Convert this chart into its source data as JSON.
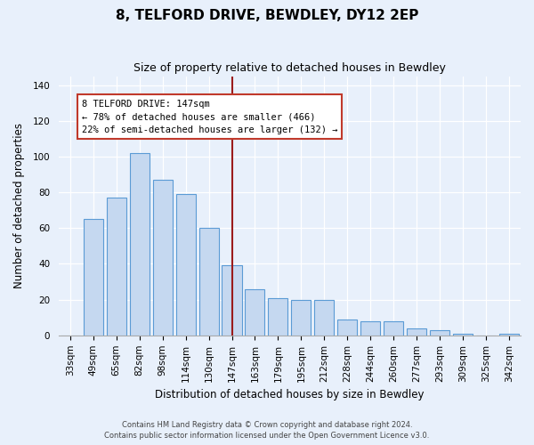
{
  "title": "8, TELFORD DRIVE, BEWDLEY, DY12 2EP",
  "subtitle": "Size of property relative to detached houses in Bewdley",
  "xlabel": "Distribution of detached houses by size in Bewdley",
  "ylabel": "Number of detached properties",
  "bar_labels": [
    "33sqm",
    "49sqm",
    "65sqm",
    "82sqm",
    "98sqm",
    "114sqm",
    "130sqm",
    "147sqm",
    "163sqm",
    "179sqm",
    "195sqm",
    "212sqm",
    "228sqm",
    "244sqm",
    "260sqm",
    "277sqm",
    "293sqm",
    "309sqm",
    "325sqm",
    "342sqm"
  ],
  "bar_values": [
    0,
    65,
    77,
    102,
    87,
    79,
    60,
    39,
    26,
    21,
    20,
    20,
    9,
    8,
    8,
    4,
    3,
    1,
    0,
    1
  ],
  "bar_color": "#c5d8f0",
  "bar_edge_color": "#5b9bd5",
  "vline_x_label": "147sqm",
  "vline_x_idx": 7,
  "vline_color": "#9b1c1c",
  "annotation_title": "8 TELFORD DRIVE: 147sqm",
  "annotation_line1": "← 78% of detached houses are smaller (466)",
  "annotation_line2": "22% of semi-detached houses are larger (132) →",
  "annotation_box_color": "#c0392b",
  "ylim": [
    0,
    145
  ],
  "yticks": [
    0,
    20,
    40,
    60,
    80,
    100,
    120,
    140
  ],
  "footer1": "Contains HM Land Registry data © Crown copyright and database right 2024.",
  "footer2": "Contains public sector information licensed under the Open Government Licence v3.0.",
  "bg_color": "#e8f0fb",
  "plot_bg_color": "#e8f0fb",
  "grid_color": "#ffffff",
  "title_fontsize": 11,
  "subtitle_fontsize": 9,
  "tick_fontsize": 7.5,
  "label_fontsize": 8.5,
  "ann_fontsize": 7.5
}
